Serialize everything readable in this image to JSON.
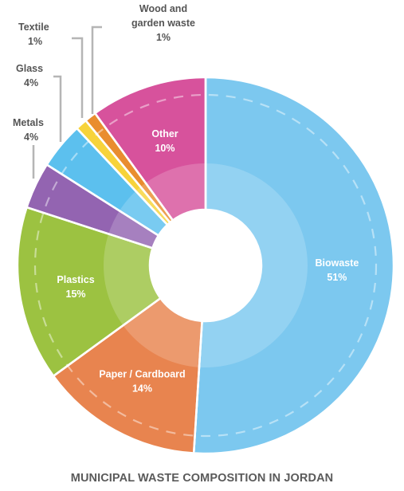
{
  "chart_data": {
    "type": "pie",
    "title": "MUNICIPAL WASTE COMPOSITION IN JORDAN",
    "slices": [
      {
        "label": "Biowaste",
        "value_label": "51%",
        "value": 51,
        "color": "#7cc8ef"
      },
      {
        "label": "Paper / Cardboard",
        "value_label": "14%",
        "value": 14,
        "color": "#e8844f"
      },
      {
        "label": "Plastics",
        "value_label": "15%",
        "value": 15,
        "color": "#9cc241"
      },
      {
        "label": "Metals",
        "value_label": "4%",
        "value": 4,
        "color": "#9364b1"
      },
      {
        "label": "Glass",
        "value_label": "4%",
        "value": 4,
        "color": "#5cc0ee"
      },
      {
        "label": "Textile",
        "value_label": "1%",
        "value": 1,
        "color": "#f7d33a"
      },
      {
        "label": "Wood and garden waste",
        "value_label": "1%",
        "value": 1,
        "color": "#e98d2f"
      },
      {
        "label": "Other",
        "value_label": "10%",
        "value": 10,
        "color": "#d7529c"
      }
    ]
  }
}
